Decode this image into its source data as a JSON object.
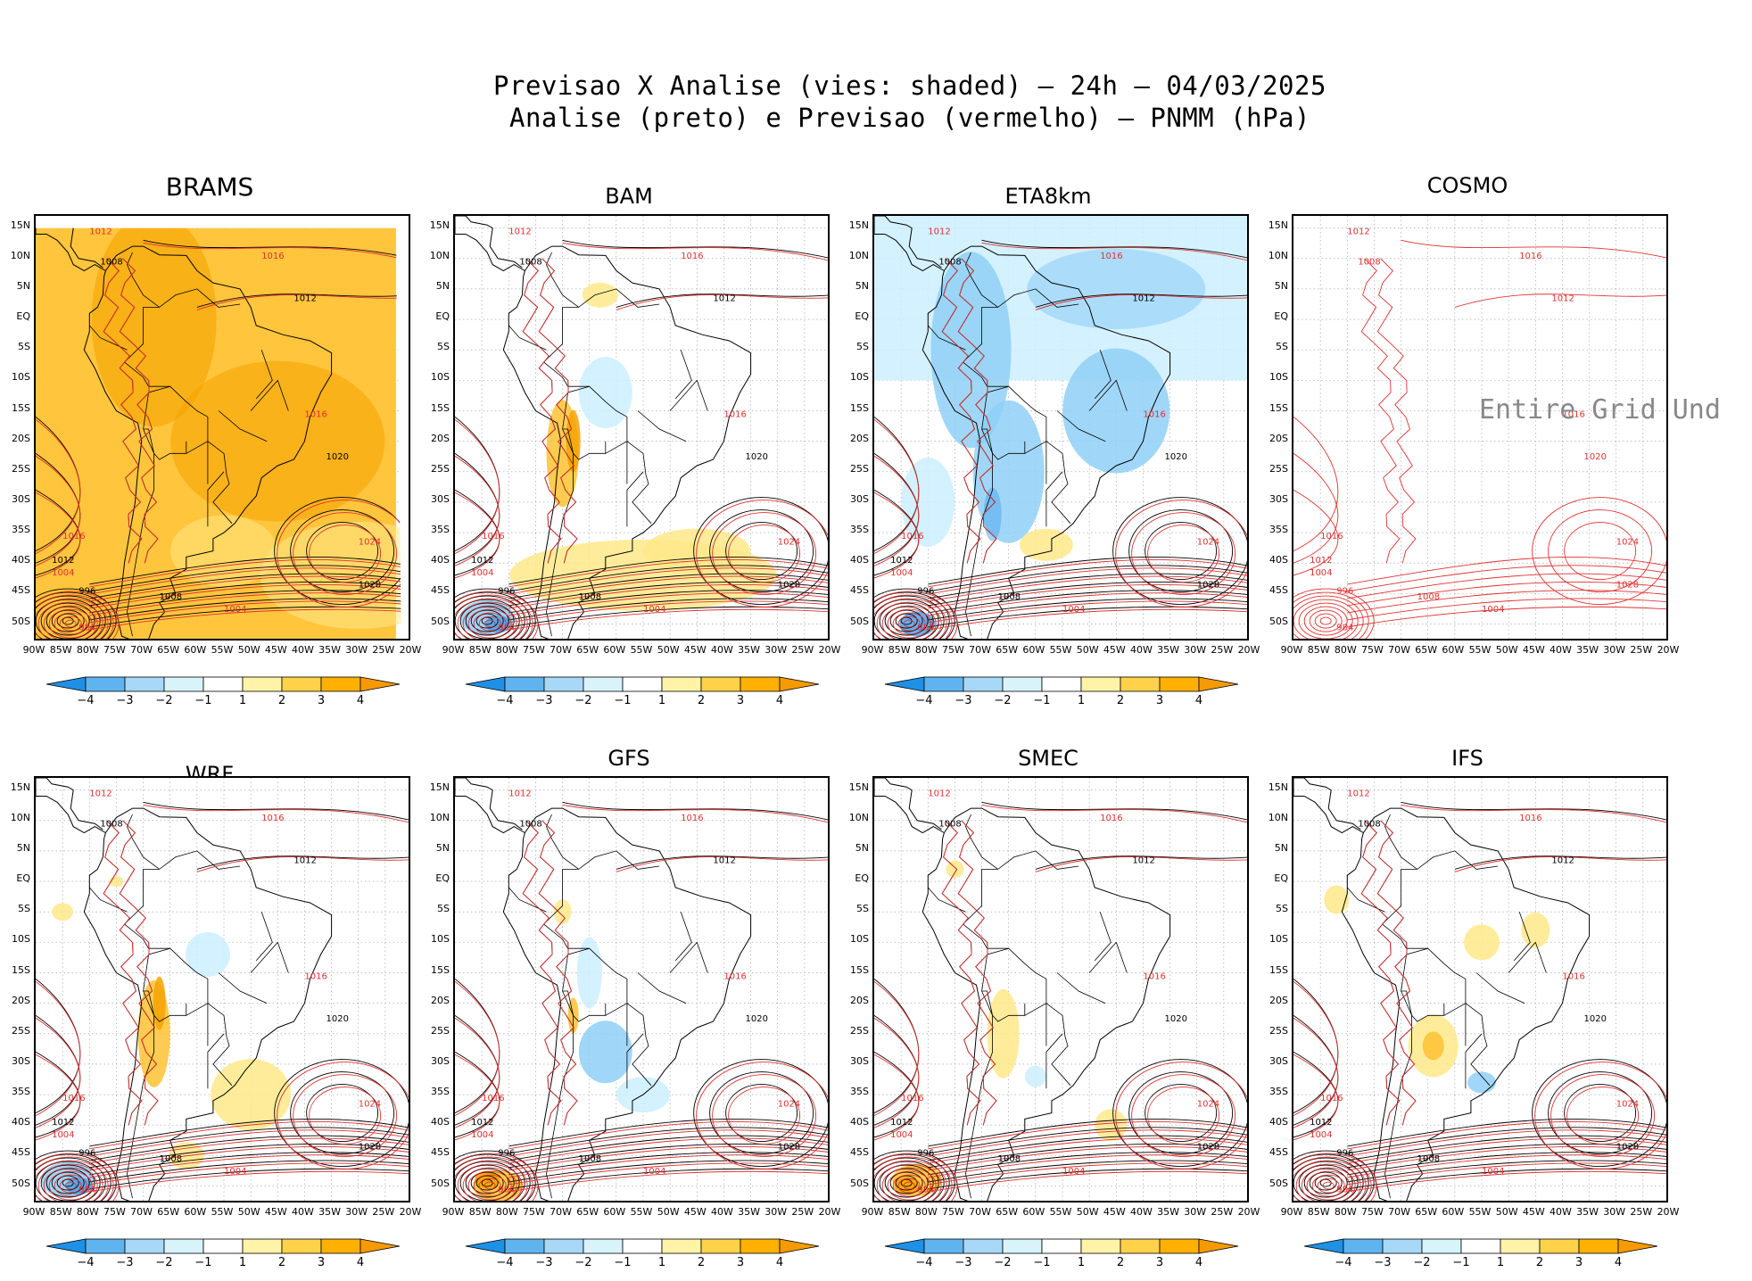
{
  "header": {
    "line1": "Previsao X Analise (vies: shaded) – 24h – 04/03/2025",
    "line2": "Analise (preto) e Previsao (vermelho) – PNMM (hPa)"
  },
  "lat_labels": [
    "15N",
    "10N",
    "5N",
    "EQ",
    "5S",
    "10S",
    "15S",
    "20S",
    "25S",
    "30S",
    "35S",
    "40S",
    "45S",
    "50S"
  ],
  "lon_labels": [
    "90W",
    "85W",
    "80W",
    "75W",
    "70W",
    "65W",
    "60W",
    "55W",
    "50W",
    "45W",
    "40W",
    "35W",
    "30W",
    "25W",
    "20W"
  ],
  "colorbar": {
    "labels": [
      "−4",
      "−3",
      "−2",
      "−1",
      "1",
      "2",
      "3",
      "4"
    ],
    "colors": [
      "#1e90e6",
      "#5fb4f0",
      "#a8d8f8",
      "#d9f3fb",
      "#ffffff",
      "#fff3a8",
      "#ffd24a",
      "#ffb000",
      "#f59a00"
    ]
  },
  "colors": {
    "analysis": "#000000",
    "forecast": "#e03030",
    "bias_warm_light": "#ffe98a",
    "bias_warm": "#ffc233",
    "bias_warm_strong": "#f5a300",
    "bias_cold_light": "#cdefff",
    "bias_cold": "#8fd0f7",
    "bias_cold_strong": "#4aa3ec"
  },
  "panels": [
    {
      "name": "BRAMS",
      "overlay": ""
    },
    {
      "name": "BAM",
      "overlay": ""
    },
    {
      "name": "ETA8km",
      "overlay": ""
    },
    {
      "name": "COSMO",
      "overlay": "Entire Grid Und"
    },
    {
      "name": "WRF",
      "overlay": ""
    },
    {
      "name": "GFS",
      "overlay": ""
    },
    {
      "name": "SMEC",
      "overlay": ""
    },
    {
      "name": "IFS",
      "overlay": ""
    }
  ],
  "contour_labels": {
    "common": [
      "1012",
      "1008",
      "1016",
      "1012",
      "1016",
      "1020",
      "1024",
      "1020",
      "1016",
      "1012",
      "1008",
      "1004",
      "1000",
      "996",
      "984",
      "1028"
    ]
  }
}
